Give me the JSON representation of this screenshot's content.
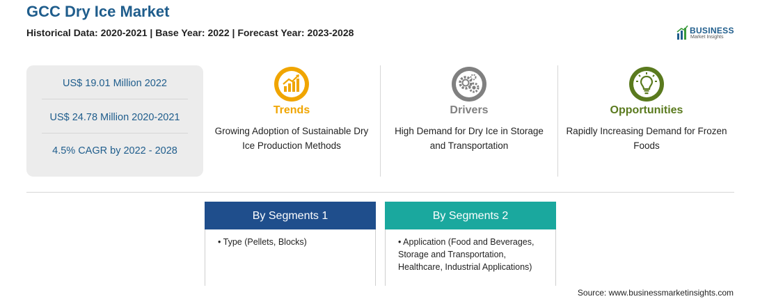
{
  "header": {
    "title": "GCC Dry Ice Market",
    "subtitle": "Historical Data: 2020-2021 | Base Year: 2022 | Forecast Year: 2023-2028"
  },
  "logo": {
    "main": "BUSINESS",
    "sub": "Market Insights"
  },
  "stats": [
    {
      "text": "US$ 19.01 Million 2022"
    },
    {
      "text": "US$ 24.78 Million 2020-2021"
    },
    {
      "text": "4.5% CAGR by 2022 - 2028"
    }
  ],
  "columns": {
    "trends": {
      "heading": "Trends",
      "description": "Growing Adoption of Sustainable Dry Ice Production Methods",
      "icon": "chart-growth-icon",
      "color": "#f0a500"
    },
    "drivers": {
      "heading": "Drivers",
      "description": "High Demand for Dry Ice in Storage and Transportation",
      "icon": "gears-icon",
      "color": "#808080"
    },
    "opportunities": {
      "heading": "Opportunities",
      "description": "Rapidly Increasing Demand for Frozen Foods",
      "icon": "lightbulb-icon",
      "color": "#5a7a1e"
    }
  },
  "segments": [
    {
      "heading": "By Segments 1",
      "item": "Type (Pellets, Blocks)",
      "color": "#1f4e8c"
    },
    {
      "heading": "By Segments 2",
      "item": "Application (Food and Beverages, Storage and Transportation, Healthcare, Industrial Applications)",
      "color": "#1aa89e"
    }
  ],
  "footer": {
    "source": "Source: www.businessmarketinsights.com"
  }
}
